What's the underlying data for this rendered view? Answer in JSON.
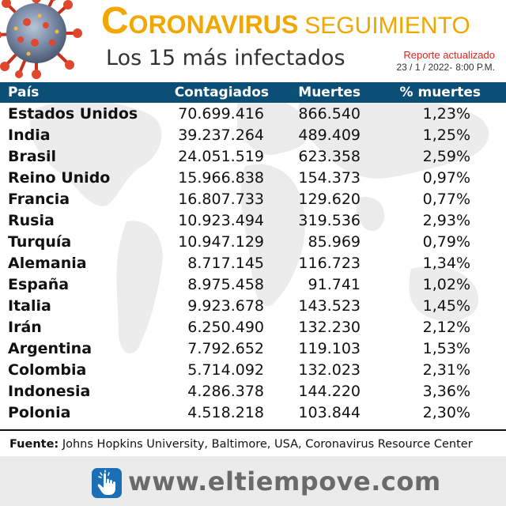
{
  "header": {
    "title_initial": "C",
    "title_rest": "ORONAVIRUS",
    "title_secondary": "SEGUIMIENTO",
    "subtitle": "Los 15 más infectados",
    "report_label": "Reporte actualizado",
    "report_date": "23 / 1 / 2022-",
    "report_time": "8:00 P.M."
  },
  "table": {
    "columns": [
      "País",
      "Contagiados",
      "Muertes",
      "% muertes"
    ],
    "rows": [
      {
        "country": "Estados Unidos",
        "cases": "70.699.416",
        "deaths": "866.540",
        "pct": "1,23%"
      },
      {
        "country": "India",
        "cases": "39.237.264",
        "deaths": "489.409",
        "pct": "1,25%"
      },
      {
        "country": "Brasil",
        "cases": "24.051.519",
        "deaths": "623.358",
        "pct": "2,59%"
      },
      {
        "country": "Reino Unido",
        "cases": "15.966.838",
        "deaths": "154.373",
        "pct": "0,97%"
      },
      {
        "country": "Francia",
        "cases": "16.807.733",
        "deaths": "129.620",
        "pct": "0,77%"
      },
      {
        "country": "Rusia",
        "cases": "10.923.494",
        "deaths": "319.536",
        "pct": "2,93%"
      },
      {
        "country": "Turquía",
        "cases": "10.947.129",
        "deaths": "85.969",
        "pct": "0,79%"
      },
      {
        "country": "Alemania",
        "cases": "8.717.145",
        "deaths": "116.723",
        "pct": "1,34%"
      },
      {
        "country": "España",
        "cases": "8.975.458",
        "deaths": "91.741",
        "pct": "1,02%"
      },
      {
        "country": "Italia",
        "cases": "9.923.678",
        "deaths": "143.523",
        "pct": "1,45%"
      },
      {
        "country": "Irán",
        "cases": "6.250.490",
        "deaths": "132.230",
        "pct": "2,12%"
      },
      {
        "country": "Argentina",
        "cases": "7.792.652",
        "deaths": "119.103",
        "pct": "1,53%"
      },
      {
        "country": "Colombia",
        "cases": "5.714.092",
        "deaths": "132.023",
        "pct": "2,31%"
      },
      {
        "country": "Indonesia",
        "cases": "4.286.378",
        "deaths": "144.220",
        "pct": "3,36%"
      },
      {
        "country": "Polonia",
        "cases": "4.518.218",
        "deaths": "103.844",
        "pct": "2,30%"
      }
    ]
  },
  "footer": {
    "source_label": "Fuente:",
    "source_text": " Johns Hopkins University, Baltimore, USA, Coronavirus Resource Center",
    "brand_url": "www.eltiempove.com"
  },
  "colors": {
    "title": "#f2a600",
    "header_bg": "#0b4f77",
    "report_label": "#e2231a",
    "brand_icon": "#1c6fb5"
  },
  "icons": {
    "virus": "coronavirus-icon",
    "brand": "pointer-hand-icon"
  }
}
